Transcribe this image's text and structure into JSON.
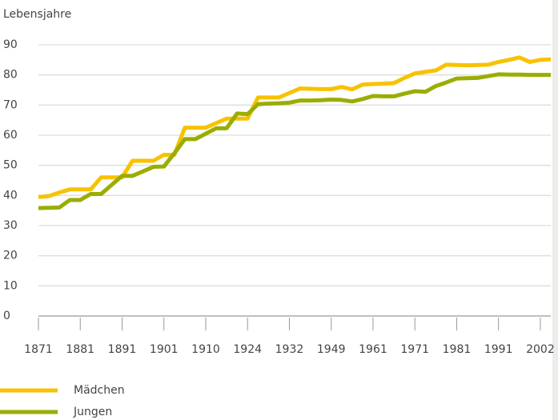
{
  "chart_data": {
    "type": "line",
    "y_label": "Lebensjahre",
    "categories": [
      1871,
      null,
      null,
      null,
      1881,
      null,
      null,
      null,
      1891,
      null,
      null,
      null,
      1901,
      null,
      null,
      null,
      1910,
      null,
      null,
      null,
      1924,
      null,
      null,
      null,
      1932,
      null,
      null,
      null,
      1949,
      null,
      null,
      null,
      1961,
      null,
      null,
      null,
      1971,
      null,
      null,
      null,
      1981,
      null,
      null,
      null,
      1991,
      null,
      null,
      null,
      2002,
      null
    ],
    "series": [
      {
        "name": "Mädchen",
        "color": "#f7c200",
        "values": [
          39.5,
          39.8,
          41,
          42,
          42,
          42,
          46,
          46,
          46,
          51.5,
          51.5,
          51.5,
          53.5,
          53.5,
          62.5,
          62.5,
          62.5,
          64,
          65.5,
          65.5,
          65.5,
          72.5,
          72.5,
          72.5,
          74,
          75.5,
          75.4,
          75.3,
          75.3,
          76,
          75.2,
          76.8,
          77,
          77.1,
          77.3,
          79,
          80.5,
          81,
          81.5,
          83.4,
          83.3,
          83.2,
          83.3,
          83.4,
          84.3,
          85,
          85.8,
          84.3,
          85,
          85.2
        ]
      },
      {
        "name": "Jungen",
        "color": "#9aad00",
        "values": [
          35.8,
          35.9,
          36,
          38.5,
          38.5,
          40.5,
          40.5,
          43.5,
          46.5,
          46.5,
          48,
          49.5,
          49.6,
          54,
          58.7,
          58.7,
          60.5,
          62.3,
          62.3,
          67.2,
          67,
          70.3,
          70.5,
          70.6,
          70.8,
          71.5,
          71.5,
          71.6,
          71.8,
          71.7,
          71.2,
          72,
          73,
          72.9,
          72.9,
          73.8,
          74.6,
          74.4,
          76.3,
          77.5,
          78.8,
          78.9,
          79,
          79.6,
          80.2,
          80.1,
          80.1,
          80,
          80,
          80
        ]
      }
    ],
    "ylim": [
      0,
      90
    ],
    "yticks": [
      0,
      10,
      20,
      30,
      40,
      50,
      60,
      70,
      80,
      90
    ],
    "grid": true
  }
}
